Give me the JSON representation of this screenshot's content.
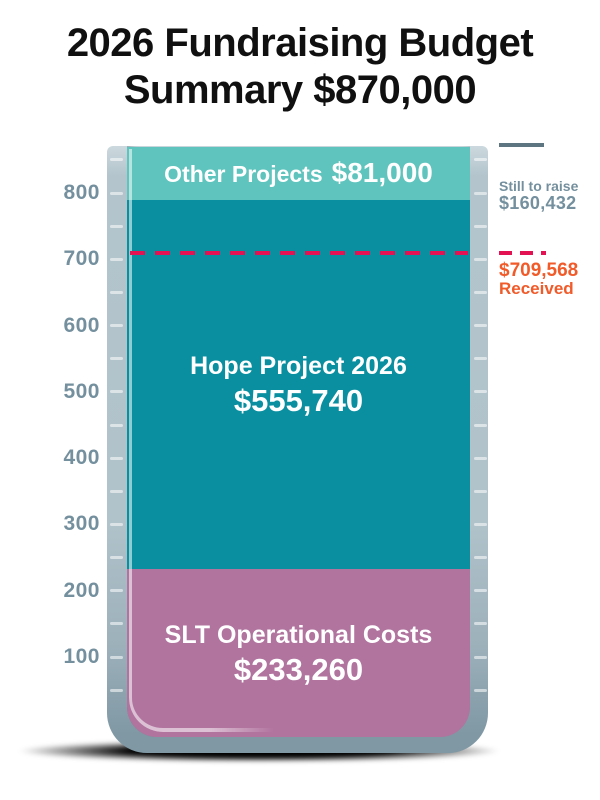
{
  "title": {
    "line1": "2026 Fundraising Budget",
    "line2": "Summary $870,000"
  },
  "chart_data": {
    "type": "bar",
    "subtype": "stacked-thermometer",
    "title": "2026 Fundraising Budget Summary $870,000",
    "total_value": 870000,
    "total_label": "$870,000",
    "axis": {
      "unit": "thousands of dollars",
      "min": 0,
      "max": 870,
      "tick_labels": [
        "800",
        "700",
        "600",
        "500",
        "400",
        "300",
        "200",
        "100"
      ],
      "tick_step": 100,
      "minor_tick_step": 50,
      "label_color": "#74909e"
    },
    "segments": [
      {
        "label": "Other Projects",
        "amount": "$81,000",
        "value": 81000,
        "color": "#5ec4bd"
      },
      {
        "label": "Hope Project 2026",
        "amount": "$555,740",
        "value": 555740,
        "color": "#0a8fa0"
      },
      {
        "label": "SLT Operational Costs",
        "amount": "$233,260",
        "value": 233260,
        "color": "#b1749f"
      }
    ],
    "received_line": {
      "value": 709568,
      "color": "#e31253"
    },
    "annotations": {
      "still_to_raise": {
        "label": "Still to raise",
        "amount": "$160,432",
        "value": 160432,
        "color": "#74909e",
        "marker_color": "#5d7580"
      },
      "received": {
        "amount": "$709,568",
        "label": "Received",
        "value": 709568,
        "color": "#f15a29",
        "line_color": "#e31253"
      }
    }
  }
}
